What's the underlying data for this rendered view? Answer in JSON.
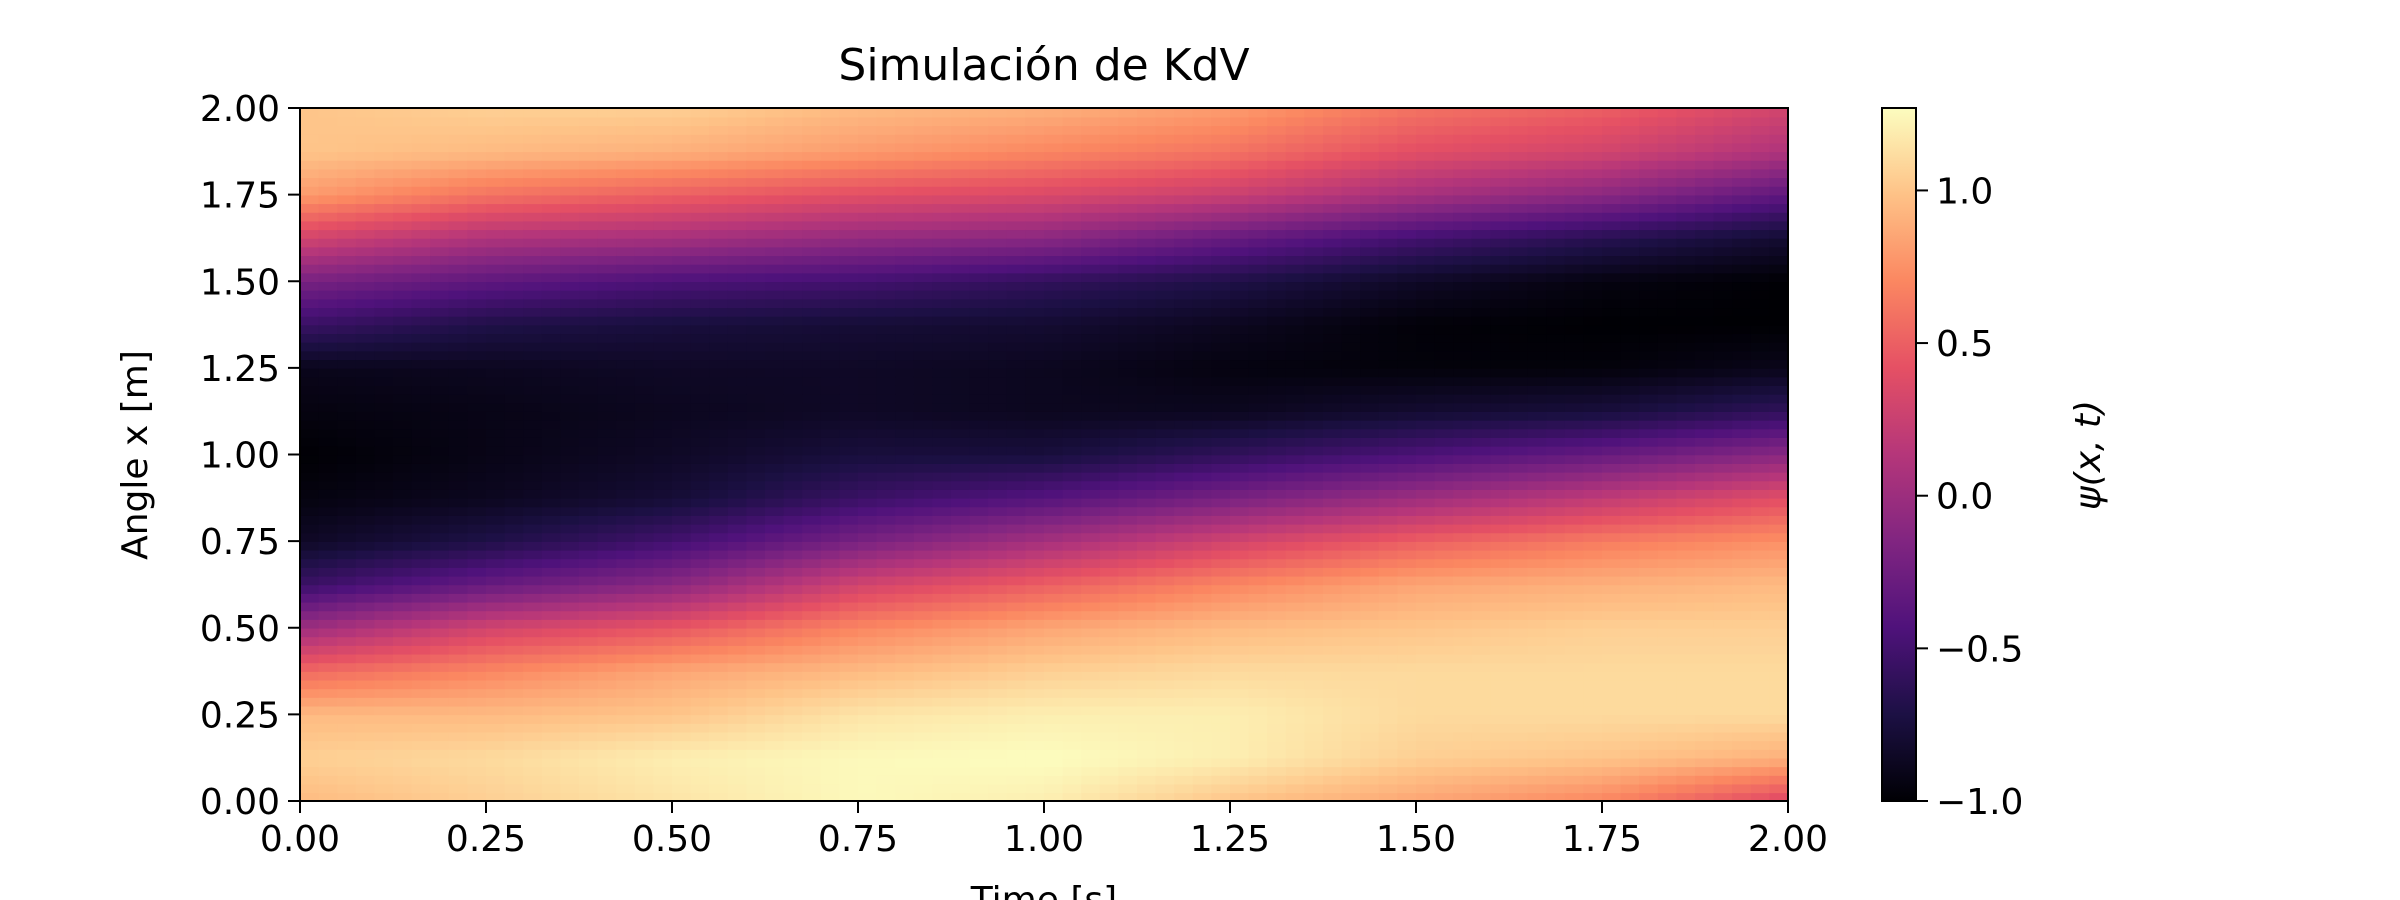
{
  "chart_data": {
    "type": "heatmap",
    "title": "Simulación de KdV",
    "xlabel": "Time [s]",
    "ylabel": "Angle x [m]",
    "xlim": [
      0,
      2
    ],
    "ylim": [
      0,
      2
    ],
    "x_ticks": [
      "0.00",
      "0.25",
      "0.50",
      "0.75",
      "1.00",
      "1.25",
      "1.50",
      "1.75",
      "2.00"
    ],
    "y_ticks": [
      "0.00",
      "0.25",
      "0.50",
      "0.75",
      "1.00",
      "1.25",
      "1.50",
      "1.75",
      "2.00"
    ],
    "colormap": "magma",
    "colorbar": {
      "label": "ψ(x, t)",
      "range": [
        -1.0,
        1.27
      ],
      "ticks": [
        "−1.0",
        "−0.5",
        "0.0",
        "0.5",
        "1.0"
      ],
      "tick_values": [
        -1.0,
        -0.5,
        0.0,
        0.5,
        1.0
      ]
    },
    "grid": false,
    "t": [
      0,
      0.25,
      0.5,
      0.75,
      1.0,
      1.25,
      1.5,
      1.75,
      2.0
    ],
    "x": [
      0,
      0.125,
      0.25,
      0.375,
      0.5,
      0.625,
      0.75,
      0.875,
      1.0,
      1.125,
      1.25,
      1.375,
      1.5,
      1.625,
      1.75,
      1.875,
      2.0
    ],
    "psi": [
      [
        0.95,
        1.05,
        0.95,
        0.55,
        0.0,
        -0.55,
        -0.85,
        -0.95,
        -1.0,
        -0.95,
        -0.9,
        -0.55,
        -0.2,
        0.3,
        0.8,
        1.0,
        1.0
      ],
      [
        1.05,
        1.1,
        0.95,
        0.7,
        0.3,
        -0.3,
        -0.7,
        -0.88,
        -0.92,
        -0.92,
        -0.88,
        -0.7,
        -0.35,
        0.1,
        0.6,
        0.95,
        1.05
      ],
      [
        1.15,
        1.2,
        1.0,
        0.85,
        0.45,
        -0.1,
        -0.5,
        -0.78,
        -0.85,
        -0.88,
        -0.85,
        -0.75,
        -0.45,
        0.05,
        0.5,
        0.9,
        1.05
      ],
      [
        1.25,
        1.25,
        1.15,
        0.95,
        0.7,
        0.3,
        -0.2,
        -0.55,
        -0.75,
        -0.85,
        -0.85,
        -0.78,
        -0.5,
        -0.05,
        0.4,
        0.8,
        0.95
      ],
      [
        1.2,
        1.27,
        1.2,
        1.05,
        0.85,
        0.5,
        0.05,
        -0.4,
        -0.75,
        -0.88,
        -0.88,
        -0.8,
        -0.6,
        -0.1,
        0.35,
        0.7,
        0.9
      ],
      [
        1.0,
        1.2,
        1.2,
        1.1,
        0.95,
        0.7,
        0.3,
        -0.2,
        -0.6,
        -0.88,
        -0.95,
        -0.88,
        -0.7,
        -0.3,
        0.25,
        0.6,
        0.8
      ],
      [
        0.85,
        1.05,
        1.1,
        1.1,
        1.0,
        0.85,
        0.5,
        0.0,
        -0.45,
        -0.8,
        -0.97,
        -0.98,
        -0.85,
        -0.5,
        0.05,
        0.4,
        0.6
      ],
      [
        0.7,
        1.0,
        1.1,
        1.1,
        1.05,
        0.9,
        0.65,
        0.2,
        -0.3,
        -0.75,
        -0.97,
        -1.0,
        -0.95,
        -0.65,
        -0.1,
        0.3,
        0.5
      ],
      [
        0.35,
        0.9,
        1.1,
        1.1,
        1.05,
        0.95,
        0.75,
        0.4,
        -0.1,
        -0.6,
        -0.9,
        -1.0,
        -1.0,
        -0.8,
        -0.35,
        0.1,
        0.3
      ]
    ]
  }
}
